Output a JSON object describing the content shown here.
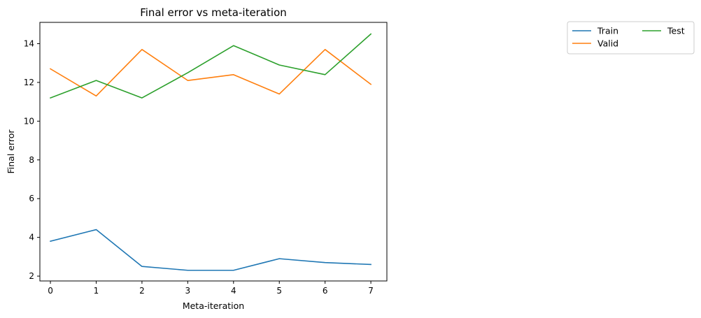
{
  "chart_data": {
    "type": "line",
    "title": "Final error vs meta-iteration",
    "xlabel": "Meta-iteration",
    "ylabel": "Final error",
    "x": [
      0,
      1,
      2,
      3,
      4,
      5,
      6,
      7
    ],
    "xlim": [
      -0.23,
      7.35
    ],
    "ylim": [
      1.75,
      15.1
    ],
    "xticks": [
      0,
      1,
      2,
      3,
      4,
      5,
      6,
      7
    ],
    "yticks": [
      2,
      4,
      6,
      8,
      10,
      12,
      14
    ],
    "grid": false,
    "legend": {
      "placement": "outside-top-right",
      "columns": 2
    },
    "series": [
      {
        "name": "Train",
        "color": "#1f77b4",
        "values": [
          3.8,
          4.4,
          2.5,
          2.3,
          2.3,
          2.9,
          2.7,
          2.6
        ]
      },
      {
        "name": "Valid",
        "color": "#ff7f0e",
        "values": [
          12.7,
          11.3,
          13.7,
          12.1,
          12.4,
          11.4,
          13.7,
          11.9
        ]
      },
      {
        "name": "Test",
        "color": "#2ca02c",
        "values": [
          11.2,
          12.1,
          11.2,
          12.5,
          13.9,
          12.9,
          12.4,
          14.5
        ]
      }
    ]
  }
}
